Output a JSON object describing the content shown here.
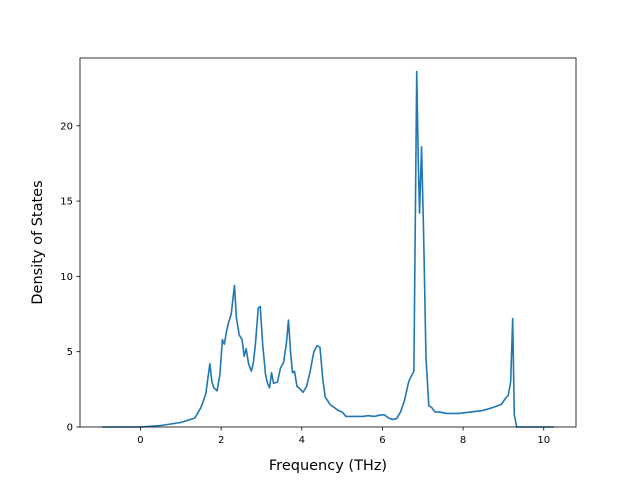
{
  "chart_data": {
    "type": "line",
    "title": "",
    "xlabel": "Frequency (THz)",
    "ylabel": "Density of States",
    "xlim": [
      -1.5,
      10.8
    ],
    "ylim": [
      0,
      24.5
    ],
    "xticks": [
      0,
      2,
      4,
      6,
      8,
      10
    ],
    "yticks": [
      0,
      5,
      10,
      15,
      20
    ],
    "xtick_labels": [
      "0",
      "2",
      "4",
      "6",
      "8",
      "10"
    ],
    "ytick_labels": [
      "0",
      "5",
      "10",
      "15",
      "20"
    ],
    "grid": false,
    "legend": false,
    "line_color": "#1f77b4",
    "series": [
      {
        "x": [
          -0.95,
          -0.5,
          0.0,
          0.5,
          1.0,
          1.35,
          1.5,
          1.62,
          1.72,
          1.77,
          1.82,
          1.9,
          1.97,
          2.03,
          2.08,
          2.13,
          2.18,
          2.25,
          2.33,
          2.38,
          2.45,
          2.52,
          2.57,
          2.62,
          2.68,
          2.75,
          2.8,
          2.85,
          2.92,
          2.97,
          3.03,
          3.1,
          3.15,
          3.2,
          3.25,
          3.3,
          3.4,
          3.47,
          3.55,
          3.62,
          3.67,
          3.72,
          3.77,
          3.82,
          3.88,
          3.97,
          4.03,
          4.12,
          4.2,
          4.3,
          4.38,
          4.45,
          4.52,
          4.58,
          4.7,
          4.9,
          5.0,
          5.1,
          5.3,
          5.5,
          5.65,
          5.8,
          5.95,
          6.05,
          6.15,
          6.25,
          6.35,
          6.45,
          6.55,
          6.65,
          6.72,
          6.78,
          6.85,
          6.89,
          6.92,
          6.97,
          7.02,
          7.08,
          7.15,
          7.22,
          7.3,
          7.4,
          7.6,
          7.9,
          8.2,
          8.5,
          8.75,
          8.95,
          9.05,
          9.12,
          9.18,
          9.23,
          9.27,
          9.33,
          9.45,
          9.7,
          10.0,
          10.25
        ],
        "y": [
          0.0,
          0.0,
          0.0,
          0.1,
          0.3,
          0.6,
          1.3,
          2.2,
          4.2,
          3.0,
          2.6,
          2.4,
          3.5,
          5.8,
          5.5,
          6.3,
          6.9,
          7.5,
          9.4,
          7.2,
          6.1,
          5.8,
          4.7,
          5.2,
          4.2,
          3.7,
          4.3,
          5.5,
          7.9,
          8.0,
          5.5,
          3.5,
          2.9,
          2.6,
          3.6,
          2.9,
          3.0,
          3.9,
          4.3,
          5.6,
          7.1,
          5.0,
          3.6,
          3.7,
          2.7,
          2.5,
          2.3,
          2.7,
          3.6,
          5.0,
          5.4,
          5.3,
          3.2,
          2.0,
          1.5,
          1.1,
          1.0,
          0.7,
          0.7,
          0.7,
          0.75,
          0.7,
          0.8,
          0.8,
          0.6,
          0.5,
          0.55,
          1.0,
          1.8,
          3.0,
          3.4,
          3.7,
          23.6,
          17.5,
          14.2,
          18.6,
          13.0,
          4.6,
          1.4,
          1.3,
          1.0,
          1.0,
          0.9,
          0.9,
          1.0,
          1.1,
          1.3,
          1.5,
          1.9,
          2.1,
          3.0,
          7.2,
          0.8,
          0.0,
          0.0,
          0.0,
          0.0,
          0.0
        ]
      }
    ]
  }
}
